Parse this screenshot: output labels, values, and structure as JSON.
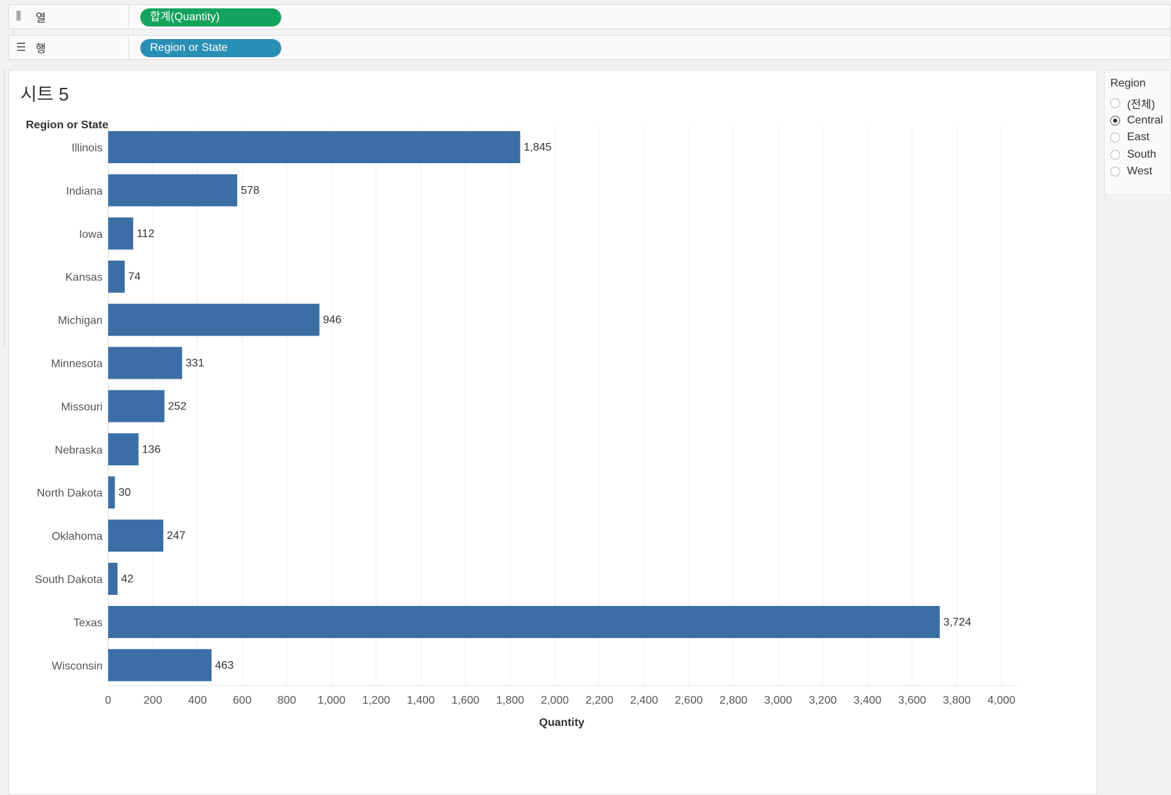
{
  "shelves": {
    "columns": {
      "icon": "columns-icon",
      "label": "열",
      "pill": "합계(Quantity)",
      "pill_color": "#14a35c"
    },
    "rows": {
      "icon": "rows-icon",
      "label": "행",
      "pill": "Region or State",
      "pill_color": "#2a8fb4"
    }
  },
  "sheet": {
    "title": "시트 5"
  },
  "legend": {
    "title": "Region",
    "items": [
      {
        "label": "(전체)",
        "checked": false
      },
      {
        "label": "Central",
        "checked": true
      },
      {
        "label": "East",
        "checked": false
      },
      {
        "label": "South",
        "checked": false
      },
      {
        "label": "West",
        "checked": false
      }
    ]
  },
  "chart_data": {
    "type": "bar",
    "orientation": "horizontal",
    "row_header": "Region or State",
    "categories": [
      "Illinois",
      "Indiana",
      "Iowa",
      "Kansas",
      "Michigan",
      "Minnesota",
      "Missouri",
      "Nebraska",
      "North Dakota",
      "Oklahoma",
      "South Dakota",
      "Texas",
      "Wisconsin"
    ],
    "values": [
      1845,
      578,
      112,
      74,
      946,
      331,
      252,
      136,
      30,
      247,
      42,
      3724,
      463
    ],
    "value_labels": [
      "1,845",
      "578",
      "112",
      "74",
      "946",
      "331",
      "252",
      "136",
      "30",
      "247",
      "42",
      "3,724",
      "463"
    ],
    "xlabel": "Quantity",
    "xlim": [
      0,
      4000
    ],
    "xticks": [
      0,
      200,
      400,
      600,
      800,
      1000,
      1200,
      1400,
      1600,
      1800,
      2000,
      2200,
      2400,
      2600,
      2800,
      3000,
      3200,
      3400,
      3600,
      3800,
      4000
    ],
    "xtick_labels": [
      "0",
      "200",
      "400",
      "600",
      "800",
      "1,000",
      "1,200",
      "1,400",
      "1,600",
      "1,800",
      "2,000",
      "2,200",
      "2,400",
      "2,600",
      "2,800",
      "3,000",
      "3,200",
      "3,400",
      "3,600",
      "3,800",
      "4,000"
    ],
    "bar_color": "#3b6ea5",
    "grid": true
  }
}
